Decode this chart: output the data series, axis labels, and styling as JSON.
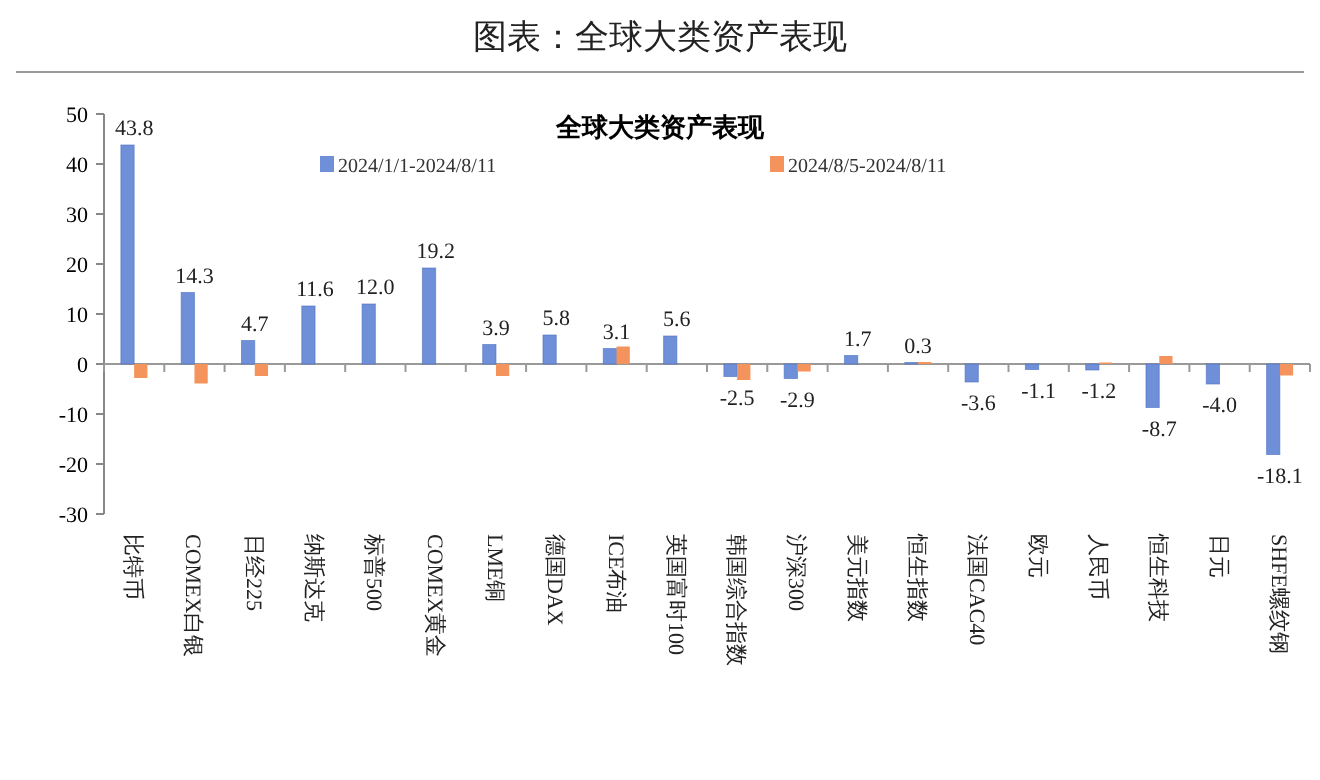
{
  "chart_data": {
    "type": "bar",
    "title": "图表：全球大类资产表现",
    "subtitle": "全球大类资产表现",
    "categories": [
      "比特币",
      "COMEX白银",
      "日经225",
      "纳斯达克",
      "标普500",
      "COMEX黄金",
      "LME铜",
      "德国DAX",
      "ICE布油",
      "英国富时100",
      "韩国综合指数",
      "沪深300",
      "美元指数",
      "恒生指数",
      "法国CAC40",
      "欧元",
      "人民币",
      "恒生科技",
      "日元",
      "SHFE螺纹钢"
    ],
    "series": [
      {
        "name": "2024/1/1-2024/8/11",
        "color": "#6f8fd8",
        "values": [
          43.8,
          14.3,
          4.7,
          11.6,
          12.0,
          19.2,
          3.9,
          5.8,
          3.1,
          5.6,
          -2.5,
          -2.9,
          1.7,
          0.3,
          -3.6,
          -1.1,
          -1.2,
          -8.7,
          -4.0,
          -18.1
        ],
        "value_labels": [
          "43.8",
          "14.3",
          "4.7",
          "11.6",
          "12.0",
          "19.2",
          "3.9",
          "5.8",
          "3.1",
          "5.6",
          "-2.5",
          "-2.9",
          "1.7",
          "0.3",
          "-3.6",
          "-1.1",
          "-1.2",
          "-8.7",
          "-4.0",
          "-18.1"
        ]
      },
      {
        "name": "2024/8/5-2024/8/11",
        "color": "#f4935c",
        "values": [
          -2.8,
          -3.9,
          -2.4,
          0,
          0,
          0,
          -2.4,
          0,
          3.5,
          0,
          -3.2,
          -1.5,
          0,
          0.4,
          0,
          0,
          0.3,
          1.6,
          0,
          -2.3
        ]
      }
    ],
    "ylim": [
      -30,
      50
    ],
    "yticks": [
      -30,
      -20,
      -10,
      0,
      10,
      20,
      30,
      40,
      50
    ],
    "legend": "top"
  }
}
